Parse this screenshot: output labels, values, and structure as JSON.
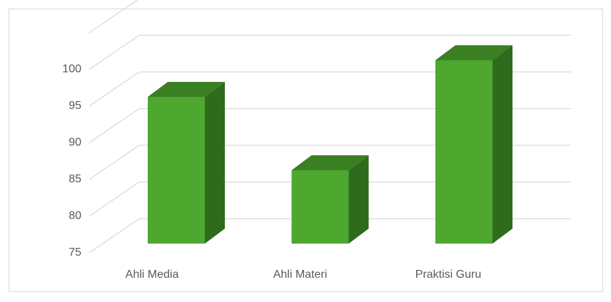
{
  "chart_data": {
    "type": "bar3d",
    "categories": [
      "Ahli Media",
      "Ahli Materi",
      "Praktisi Guru"
    ],
    "values": [
      95,
      85,
      100
    ],
    "colors": {
      "front": "#4ea72e",
      "top": "#3b7f23",
      "side": "#2f6b1c"
    },
    "ylim": [
      75,
      105
    ],
    "yticks": [
      75,
      80,
      85,
      90,
      95,
      100
    ],
    "grid": true
  }
}
